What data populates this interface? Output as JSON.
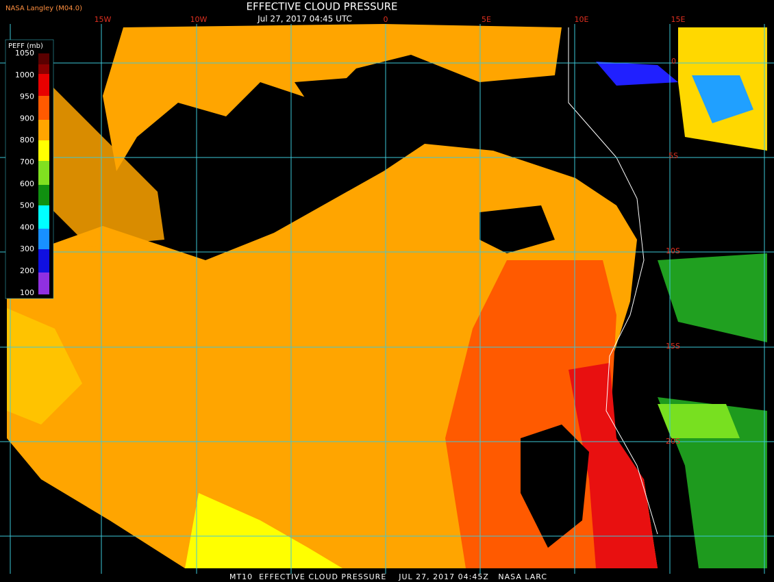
{
  "header": {
    "credit": "NASA Langley (M04.0)",
    "title": "EFFECTIVE CLOUD PRESSURE",
    "subtitle": "Jul 27, 2017 04:45 UTC"
  },
  "colorbar": {
    "label": "PEFF (mb)",
    "ticks": [
      "1050",
      "1000",
      "950",
      "900",
      "800",
      "700",
      "600",
      "500",
      "400",
      "300",
      "200",
      "100"
    ]
  },
  "longitude_labels": [
    "15W",
    "10W",
    "0",
    "5E",
    "10E",
    "15E"
  ],
  "latitude_labels": [
    "0",
    "5S",
    "10S",
    "15S",
    "20S"
  ],
  "footer": "MT10  EFFECTIVE CLOUD PRESSURE    JUL 27, 2017 04:45Z   NASA LARC"
}
